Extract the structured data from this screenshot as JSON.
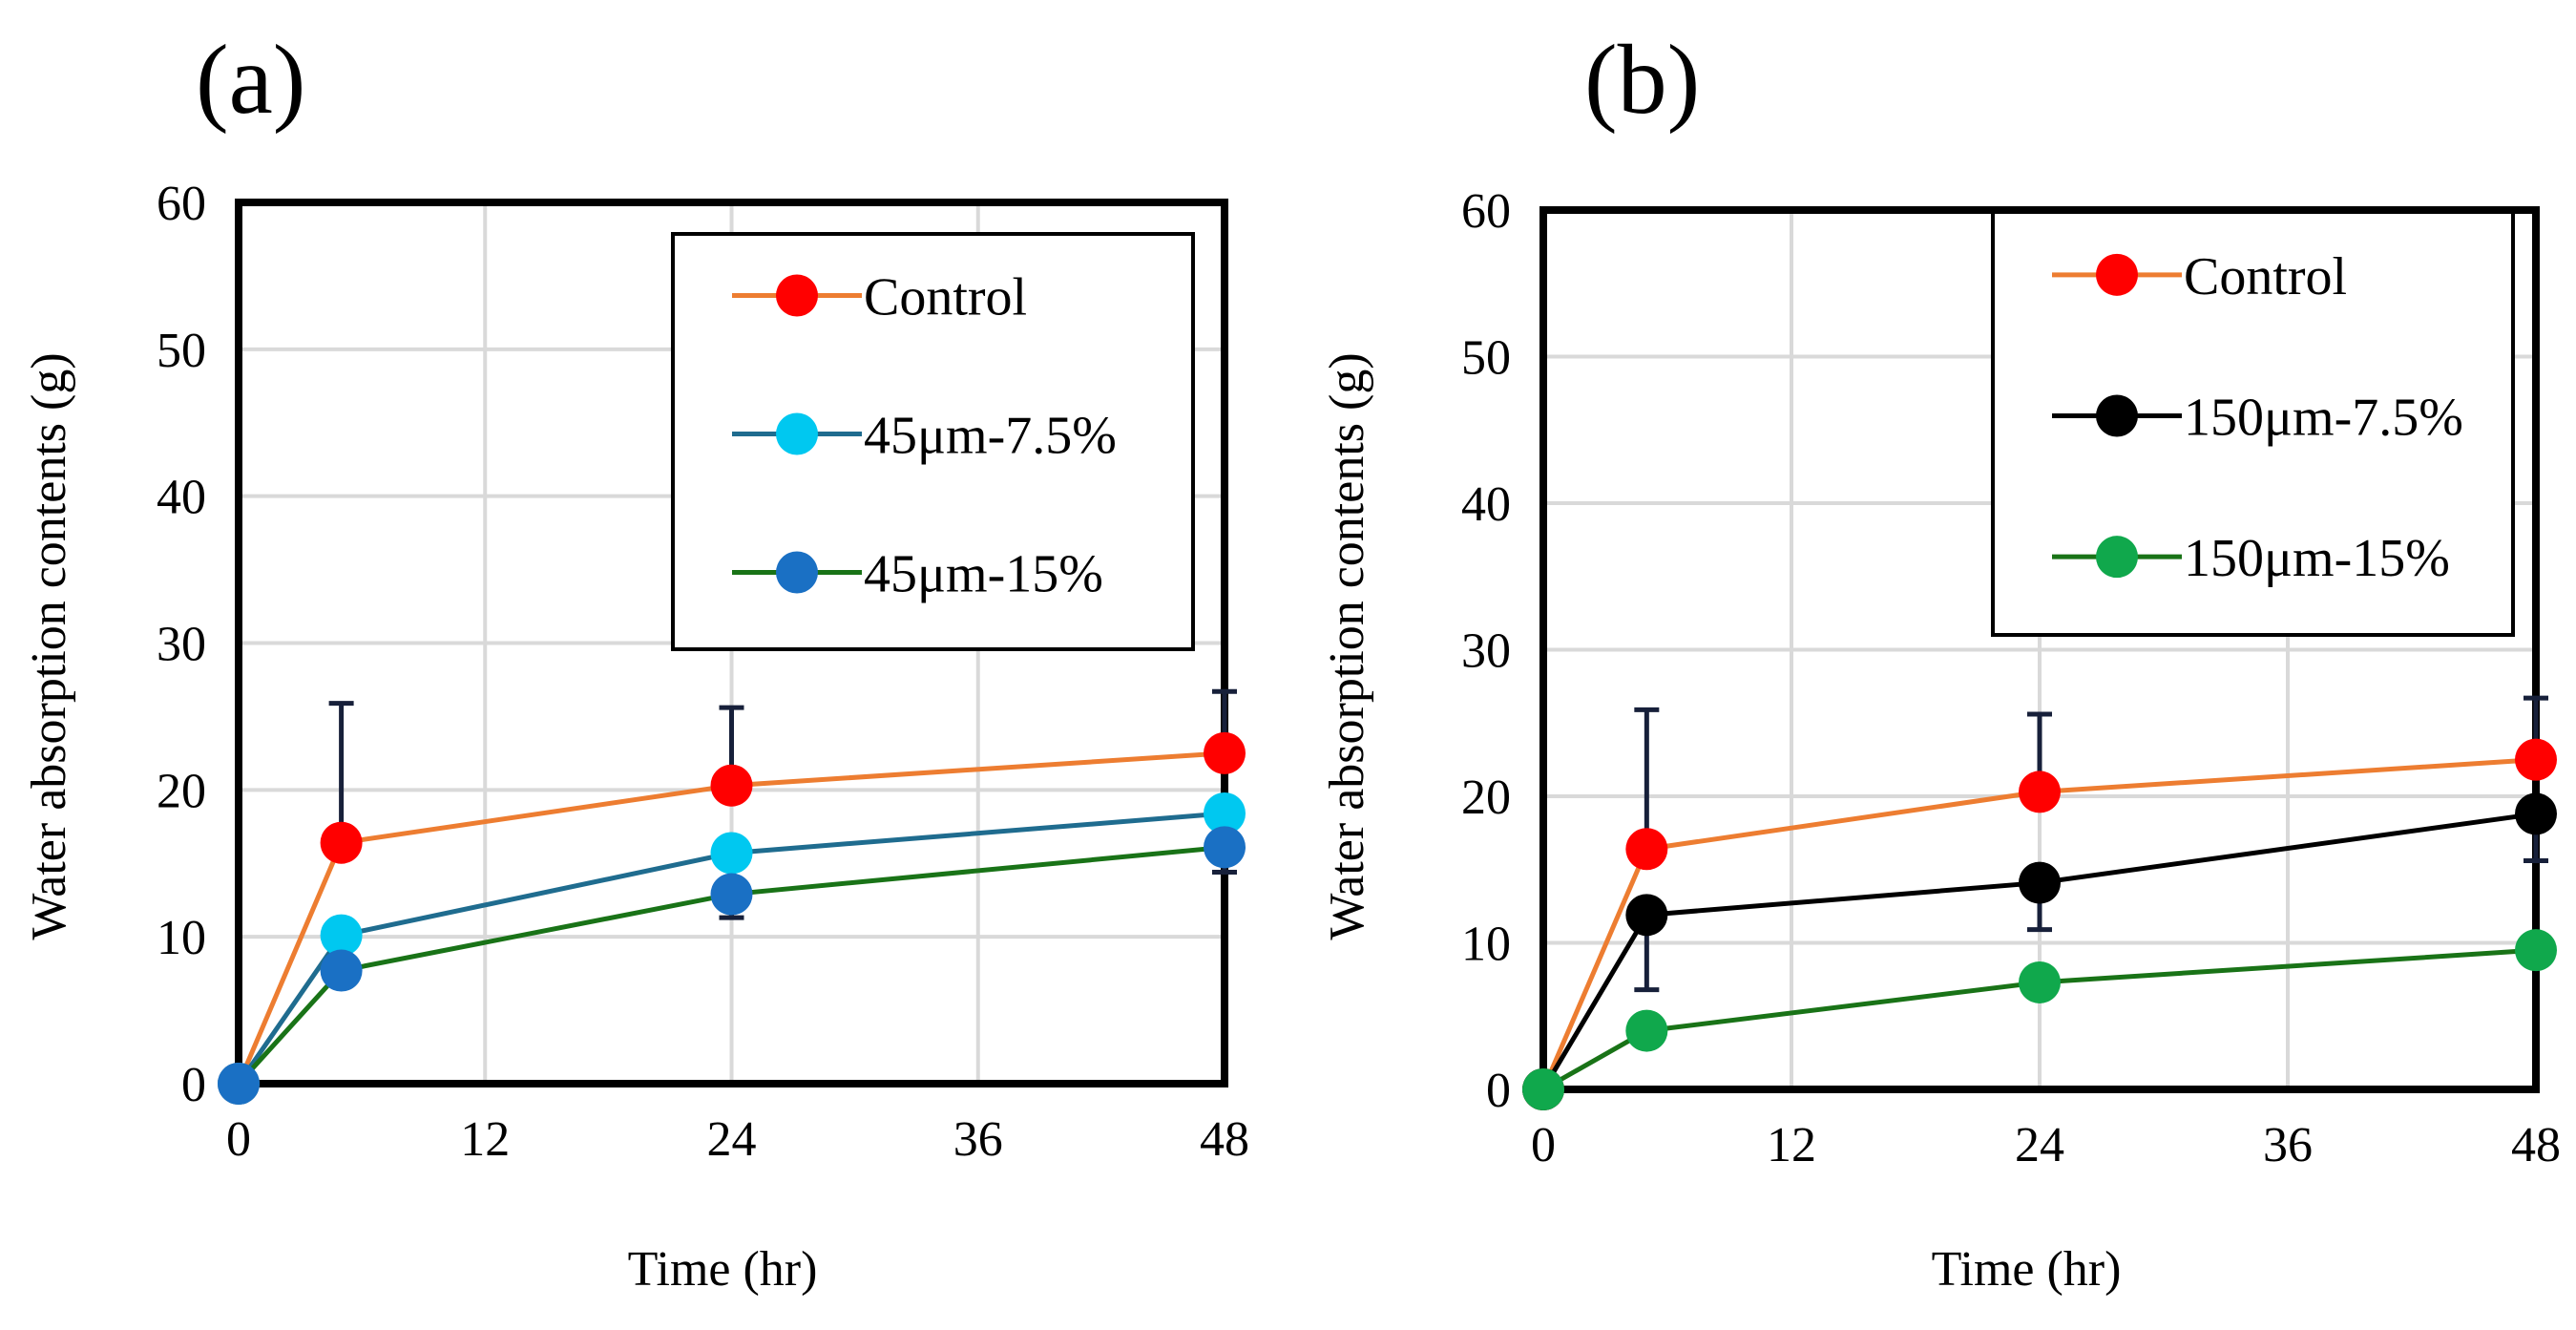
{
  "chart_data": [
    {
      "type": "line",
      "panel_label": "(a)",
      "xlabel": "Time (hr)",
      "ylabel": "Water absorption  contents (g)",
      "x": [
        0,
        5,
        24,
        48
      ],
      "xticks": [
        "0",
        "12",
        "24",
        "36",
        "48"
      ],
      "xtick_values": [
        0,
        12,
        24,
        36,
        48
      ],
      "yticks": [
        "0",
        "10",
        "20",
        "30",
        "40",
        "50",
        "60"
      ],
      "ytick_values": [
        0,
        10,
        20,
        30,
        40,
        50,
        60
      ],
      "xlim": [
        0,
        48
      ],
      "ylim": [
        0,
        60
      ],
      "grid": true,
      "legend_position": "top-right",
      "series": [
        {
          "name": "Control",
          "line_color": "#ED7D31",
          "marker_color": "#FF0000",
          "values": [
            0,
            16.4,
            20.3,
            22.5
          ],
          "error_upper": [
            0,
            9.5,
            5.3,
            4.2
          ]
        },
        {
          "name": "45μm-7.5%",
          "line_color": "#1F6C8F",
          "marker_color": "#00C8F0",
          "values": [
            0,
            10.1,
            15.7,
            18.4
          ],
          "error_upper": [
            0,
            0,
            0,
            0
          ]
        },
        {
          "name": "45μm-15%",
          "line_color": "#197317",
          "marker_color": "#1A70C4",
          "values": [
            0,
            7.7,
            12.9,
            16.1
          ],
          "error_upper": [
            0,
            0,
            -1.6,
            -1.7
          ]
        }
      ]
    },
    {
      "type": "line",
      "panel_label": "(b)",
      "xlabel": "Time (hr)",
      "ylabel": "Water absorption  contents (g)",
      "x": [
        0,
        5,
        24,
        48
      ],
      "xticks": [
        "0",
        "12",
        "24",
        "36",
        "48"
      ],
      "xtick_values": [
        0,
        12,
        24,
        36,
        48
      ],
      "yticks": [
        "0",
        "10",
        "20",
        "30",
        "40",
        "50",
        "60"
      ],
      "ytick_values": [
        0,
        10,
        20,
        30,
        40,
        50,
        60
      ],
      "xlim": [
        0,
        48
      ],
      "ylim": [
        0,
        60
      ],
      "grid": true,
      "legend_position": "top-right",
      "series": [
        {
          "name": "Control",
          "line_color": "#ED7D31",
          "marker_color": "#FF0000",
          "values": [
            0,
            16.4,
            20.3,
            22.5
          ],
          "error_upper": [
            0,
            9.5,
            5.3,
            4.2
          ]
        },
        {
          "name": "150μm-7.5%",
          "line_color": "#000000",
          "marker_color": "#000000",
          "values": [
            0,
            11.9,
            14.1,
            18.8
          ],
          "error_upper": [
            0,
            -5.1,
            -3.2,
            -3.2
          ]
        },
        {
          "name": "150μm-15%",
          "line_color": "#197317",
          "marker_color": "#10A84C",
          "values": [
            0,
            4.0,
            7.3,
            9.5
          ],
          "error_upper": [
            0,
            0,
            0,
            0
          ]
        }
      ]
    }
  ]
}
